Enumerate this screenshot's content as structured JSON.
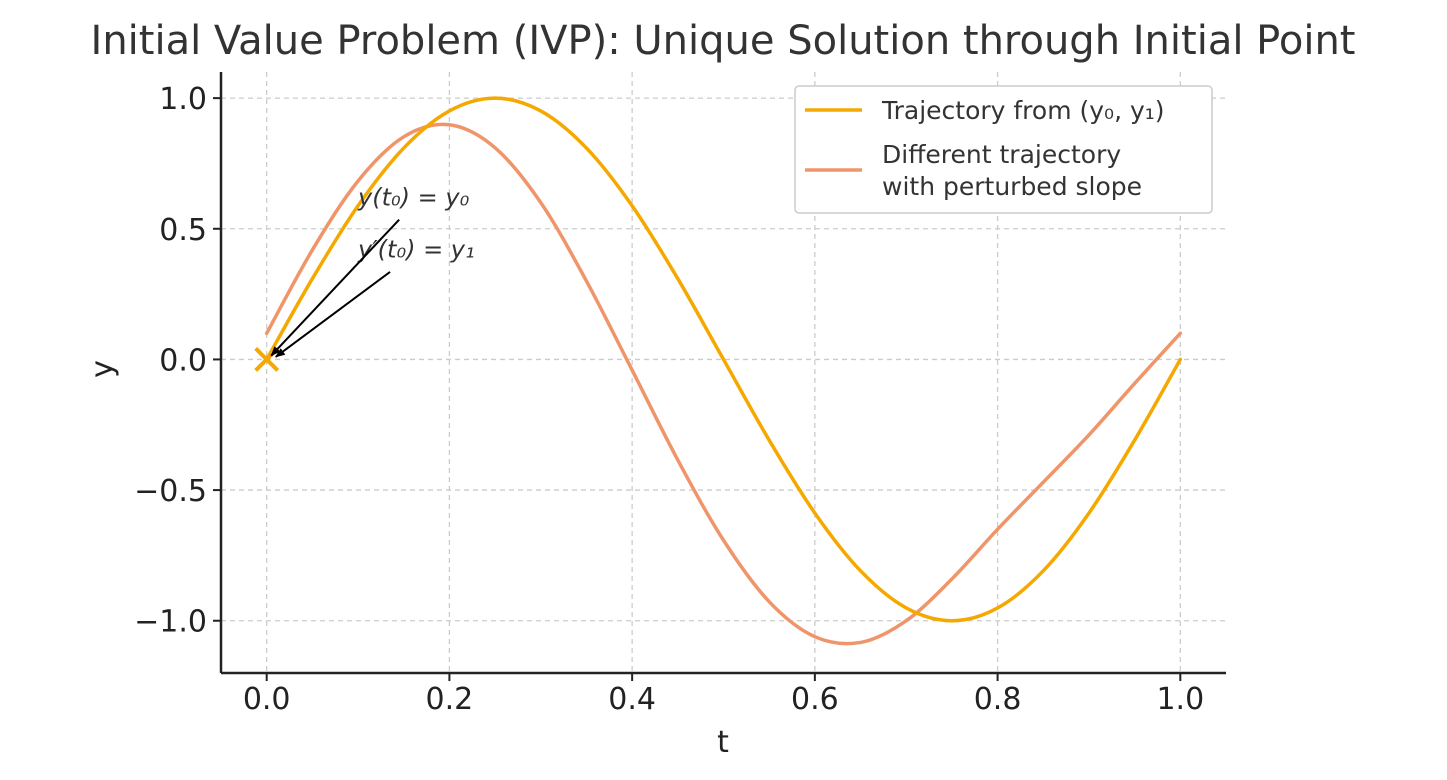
{
  "chart_data": {
    "type": "line",
    "title": "Initial Value Problem (IVP): Unique Solution through Initial Point",
    "xlabel": "t",
    "ylabel": "y",
    "xlim": [
      -0.05,
      1.05
    ],
    "ylim": [
      -1.2,
      1.1
    ],
    "x_ticks": [
      0.0,
      0.2,
      0.4,
      0.6,
      0.8,
      1.0
    ],
    "x_tick_labels": [
      "0.0",
      "0.2",
      "0.4",
      "0.6",
      "0.8",
      "1.0"
    ],
    "y_ticks": [
      1.0,
      0.5,
      0.0,
      -0.5,
      -1.0
    ],
    "y_tick_labels": [
      "1.0",
      "0.5",
      "0.0",
      "−0.5",
      "−1.0"
    ],
    "grid": true,
    "legend_position": "top-right",
    "series": [
      {
        "name": "Trajectory from (y₀, y₁)",
        "color": "#F5A800",
        "x": [
          0.0,
          0.05,
          0.1,
          0.15,
          0.2,
          0.25,
          0.3,
          0.35,
          0.4,
          0.45,
          0.5,
          0.55,
          0.6,
          0.65,
          0.7,
          0.75,
          0.8,
          0.85,
          0.9,
          0.95,
          1.0
        ],
        "y": [
          0.0,
          0.309,
          0.588,
          0.809,
          0.951,
          1.0,
          0.951,
          0.809,
          0.588,
          0.309,
          0.0,
          -0.309,
          -0.588,
          -0.809,
          -0.951,
          -1.0,
          -0.951,
          -0.809,
          -0.588,
          -0.309,
          0.0
        ]
      },
      {
        "name": "Different trajectory with perturbed slope",
        "legend_lines": [
          "Different trajectory",
          "with perturbed slope"
        ],
        "color": "#F0956A",
        "x": [
          0.0,
          0.05,
          0.1,
          0.15,
          0.2,
          0.25,
          0.3,
          0.35,
          0.4,
          0.45,
          0.5,
          0.55,
          0.6,
          0.65,
          0.7,
          0.75,
          0.8,
          0.85,
          0.9,
          0.95,
          1.0
        ],
        "y": [
          0.1,
          0.419,
          0.683,
          0.852,
          0.898,
          0.81,
          0.6,
          0.3,
          -0.041,
          -0.385,
          -0.692,
          -0.927,
          -1.061,
          -1.083,
          -1.0,
          -0.84,
          -0.65,
          -0.47,
          -0.289,
          -0.092,
          0.1
        ]
      }
    ],
    "marker": {
      "x": 0.0,
      "y": 0.0,
      "symbol": "x",
      "color": "#F5A800"
    },
    "annotations": [
      {
        "text": "y(t₀) = y₀",
        "text_x": 0.1,
        "text_y": 0.62,
        "arrow_from": [
          0.145,
          0.535
        ],
        "arrow_to": [
          0.005,
          0.015
        ]
      },
      {
        "text": "y′(t₀) = y₁",
        "text_x": 0.1,
        "text_y": 0.42,
        "arrow_from": [
          0.135,
          0.335
        ],
        "arrow_to": [
          0.01,
          0.01
        ]
      }
    ]
  }
}
